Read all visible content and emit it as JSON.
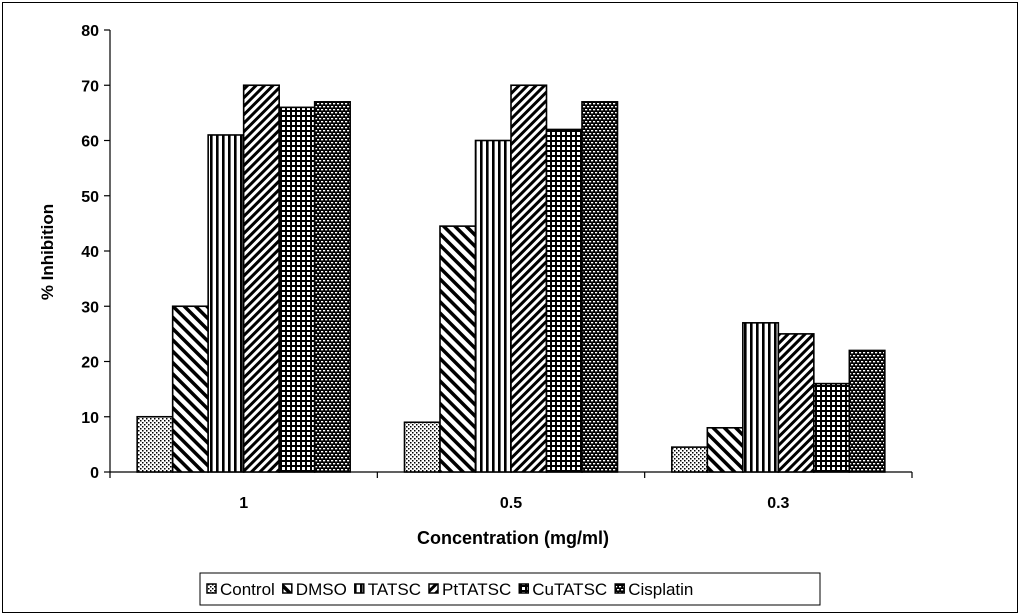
{
  "chart_data": {
    "type": "bar",
    "title": "",
    "xlabel": "Concentration (mg/ml)",
    "ylabel": "% Inhibition",
    "categories": [
      "1",
      "0.5",
      "0.3"
    ],
    "ylim": [
      0,
      80
    ],
    "yticks": [
      "0",
      "10",
      "20",
      "30",
      "40",
      "50",
      "60",
      "70",
      "80"
    ],
    "grid": false,
    "legend_position": "bottom",
    "series": [
      {
        "name": "Control",
        "values": [
          10,
          9,
          4.5
        ],
        "pattern": "dots"
      },
      {
        "name": "DMSO",
        "values": [
          30,
          44.5,
          8
        ],
        "pattern": "diagonal"
      },
      {
        "name": "TATSC",
        "values": [
          61,
          60,
          27
        ],
        "pattern": "vertical"
      },
      {
        "name": "PtTATSC",
        "values": [
          70,
          70,
          25
        ],
        "pattern": "dense-diagonal"
      },
      {
        "name": "CuTATSC",
        "values": [
          66,
          62,
          16
        ],
        "pattern": "grid"
      },
      {
        "name": "Cisplatin",
        "values": [
          67,
          67,
          22
        ],
        "pattern": "brick-dots"
      }
    ]
  }
}
